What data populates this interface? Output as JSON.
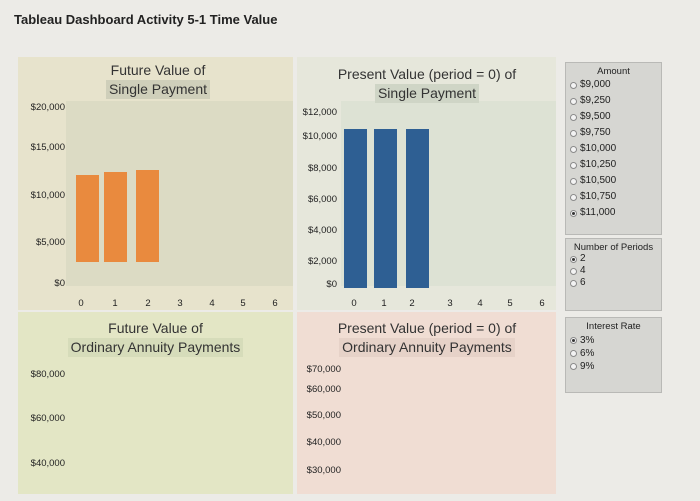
{
  "dashboard": {
    "title": "Tableau Dashboard Activity 5-1 Time Value"
  },
  "colors": {
    "orange": "#e98a3e",
    "blue": "#2e5f93"
  },
  "fv_single": {
    "title_line1": "Future Value of",
    "title_line2": "Single Payment",
    "y_ticks": [
      "$20,000",
      "$15,000",
      "$10,000",
      "$5,000",
      "$0"
    ],
    "x_ticks": [
      "0",
      "1",
      "2",
      "3",
      "4",
      "5",
      "6"
    ],
    "chart_data": {
      "type": "bar",
      "periods": [
        0,
        1,
        2
      ],
      "values": [
        11000,
        11330,
        11670
      ],
      "ylim": [
        0,
        20000
      ]
    }
  },
  "pv_single": {
    "title_line1": "Present Value (period = 0) of",
    "title_line2": "Single Payment",
    "y_ticks": [
      "$12,000",
      "$10,000",
      "$8,000",
      "$6,000",
      "$4,000",
      "$2,000",
      "$0"
    ],
    "x_ticks": [
      "0",
      "1",
      "2",
      "3",
      "4",
      "5",
      "6"
    ],
    "chart_data": {
      "type": "bar",
      "periods": [
        0,
        1,
        2
      ],
      "values": [
        11000,
        11000,
        11000
      ],
      "ylim": [
        0,
        12000
      ]
    }
  },
  "fv_annuity": {
    "title_line1": "Future Value of",
    "title_line2": "Ordinary Annuity Payments",
    "y_ticks": [
      "$80,000",
      "$60,000",
      "$40,000"
    ]
  },
  "pv_annuity": {
    "title_line1": "Present Value (period = 0) of",
    "title_line2": "Ordinary Annuity Payments",
    "y_ticks": [
      "$70,000",
      "$60,000",
      "$50,000",
      "$40,000",
      "$30,000"
    ]
  },
  "filters": {
    "amount": {
      "title": "Amount",
      "options": [
        "$9,000",
        "$9,250",
        "$9,500",
        "$9,750",
        "$10,000",
        "$10,250",
        "$10,500",
        "$10,750",
        "$11,000"
      ],
      "selected": 8
    },
    "periods": {
      "title": "Number of Periods",
      "options": [
        "2",
        "4",
        "6"
      ],
      "selected": 0
    },
    "rate": {
      "title": "Interest Rate",
      "options": [
        "3%",
        "6%",
        "9%"
      ],
      "selected": 0
    }
  }
}
